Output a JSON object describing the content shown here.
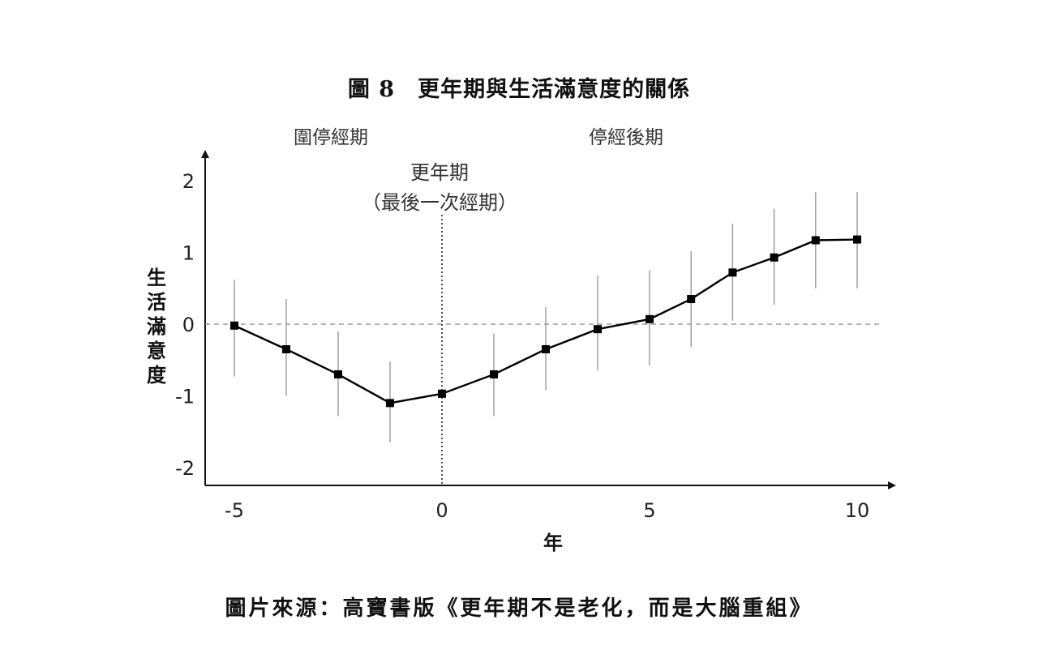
{
  "figure": {
    "title": "圖 8　更年期與生活滿意度的關係",
    "source": "圖片來源：高寶書版《更年期不是老化，而是大腦重組》",
    "region_left": "圍停經期",
    "region_right": "停經後期",
    "event_label": "更年期",
    "event_sublabel": "（最後一次經期）"
  },
  "chart_data": {
    "type": "line",
    "title": "圖 8　更年期與生活滿意度的關係",
    "xlabel": "年",
    "ylabel": "生活滿意度",
    "xlim": [
      -5,
      10.5
    ],
    "ylim": [
      -2.2,
      2.4
    ],
    "xticks": [
      -5,
      0,
      5,
      10
    ],
    "yticks": [
      -2,
      -1,
      0,
      1,
      2
    ],
    "grid": false,
    "reference_lines": [
      {
        "axis": "y",
        "value": 0,
        "style": "dashed"
      },
      {
        "axis": "x",
        "value": 0,
        "style": "dotted"
      }
    ],
    "series": [
      {
        "marker": "square",
        "color": "#000000",
        "x": [
          -5,
          -3.75,
          -2.5,
          -1.25,
          0,
          1.25,
          2.5,
          3.75,
          5,
          6,
          7,
          8,
          9,
          10
        ],
        "y": [
          -0.02,
          -0.35,
          -0.7,
          -1.1,
          -0.97,
          -0.7,
          -0.35,
          -0.07,
          0.07,
          0.35,
          0.72,
          0.93,
          1.17,
          1.18
        ],
        "error_low": [
          -0.73,
          -1.0,
          -1.28,
          -1.65,
          null,
          -1.28,
          -0.92,
          -0.65,
          -0.58,
          -0.32,
          0.05,
          0.27,
          0.5,
          0.5
        ],
        "error_high": [
          0.62,
          0.35,
          -0.1,
          -0.52,
          null,
          -0.13,
          0.24,
          0.68,
          0.75,
          1.02,
          1.4,
          1.61,
          1.84,
          1.84
        ]
      }
    ]
  }
}
